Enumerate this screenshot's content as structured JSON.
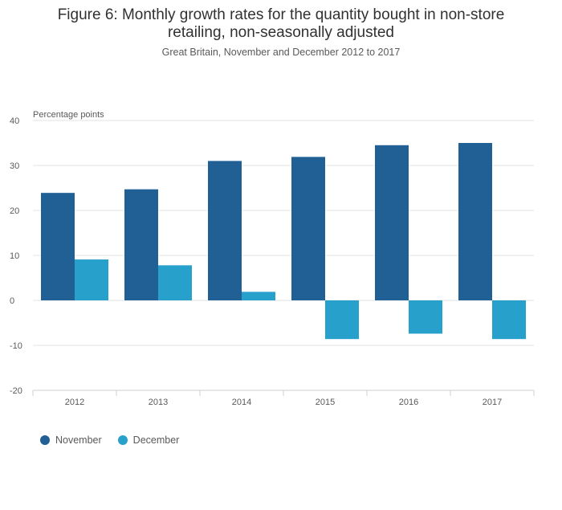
{
  "chart_data": {
    "type": "bar",
    "title_lines": [
      "Figure 6: Monthly growth rates for the quantity bought in non-store",
      "retailing, non-seasonally adjusted"
    ],
    "subtitle": "Great Britain, November and December 2012 to 2017",
    "ylabel": "Percentage points",
    "xlabel": "",
    "ylim": [
      -20,
      40
    ],
    "yticks": [
      40,
      30,
      20,
      10,
      0,
      -10,
      -20
    ],
    "categories": [
      "2012",
      "2013",
      "2014",
      "2015",
      "2016",
      "2017"
    ],
    "series": [
      {
        "name": "November",
        "color": "#206095",
        "values": [
          23.9,
          24.7,
          31.0,
          31.9,
          34.5,
          35.0
        ]
      },
      {
        "name": "December",
        "color": "#27a0cc",
        "values": [
          9.1,
          7.8,
          1.9,
          -8.6,
          -7.4,
          -8.6
        ]
      }
    ],
    "legend": "bottom-left",
    "grid": true
  }
}
